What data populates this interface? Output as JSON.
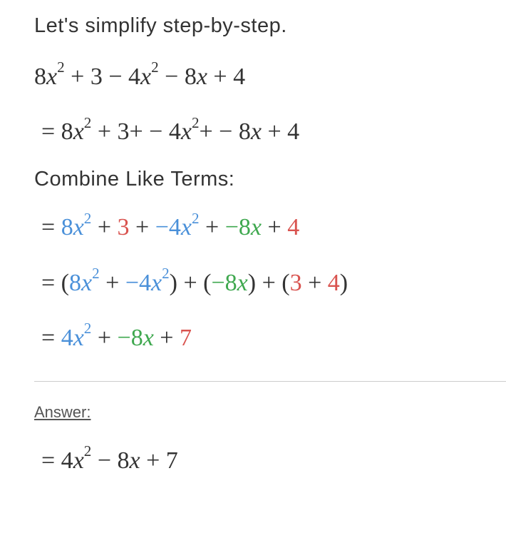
{
  "intro": "Let's simplify step-by-step.",
  "colors": {
    "x2_terms": "#4a90d9",
    "x_terms": "#3fa84f",
    "constants": "#d9534f",
    "body_text": "#333333",
    "black_math": "#000000"
  },
  "lines": {
    "line1": {
      "t1": "8",
      "v1": "x",
      "e1": "2",
      "p1": " + 3 − 4",
      "v2": "x",
      "e2": "2",
      "p2": " − 8",
      "v3": "x",
      "p3": " + 4"
    },
    "line2": {
      "eq": " = 8",
      "v1": "x",
      "e1": "2",
      "p1": " + 3+ − 4",
      "v2": "x",
      "e2": "2",
      "p2": "+ − 8",
      "v3": "x",
      "p3": " + 4"
    },
    "combine_label": "Combine Like Terms:",
    "line3": {
      "eq": " = ",
      "b1": "8",
      "bv1": "x",
      "be1": "2",
      "plus1": " + ",
      "r1": "3",
      "plus2": " + ",
      "b2": "−4",
      "bv2": "x",
      "be2": "2",
      "plus3": " + ",
      "g1": "−8",
      "gv1": "x",
      "plus4": " + ",
      "r2": "4"
    },
    "line4": {
      "eq": " = (",
      "b1": "8",
      "bv1": "x",
      "be1": "2",
      "plus1": " + ",
      "b2": "−4",
      "bv2": "x",
      "be2": "2",
      "close1": ") + (",
      "g1": "−8",
      "gv1": "x",
      "close2": ") + (",
      "r1": "3",
      "plus2": " + ",
      "r2": "4",
      "close3": ")"
    },
    "line5": {
      "eq": " = ",
      "b1": "4",
      "bv1": "x",
      "be1": "2",
      "plus1": " + ",
      "g1": "−8",
      "gv1": "x",
      "plus2": " + ",
      "r1": "7"
    },
    "answer_label": "Answer:",
    "answer": {
      "eq": " = 4",
      "v1": "x",
      "e1": "2",
      "p1": " − 8",
      "v2": "x",
      "p2": " + 7"
    }
  }
}
